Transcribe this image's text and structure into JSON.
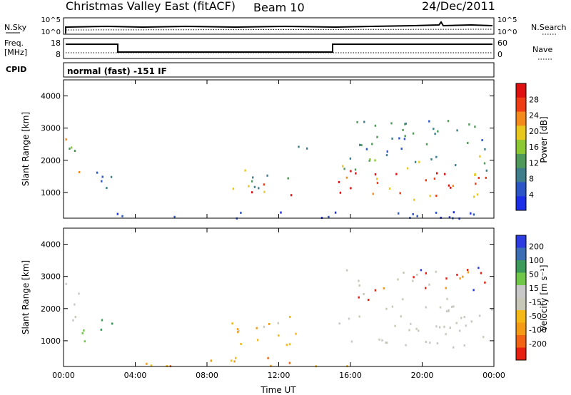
{
  "header": {
    "title": "Christmas Valley East (fitACF)",
    "beam": "Beam 10",
    "date": "24/Dec/2011"
  },
  "noise_panel": {
    "left_label": "N.Sky",
    "left_ticks": [
      "10^5",
      "10^0"
    ],
    "right_ticks": [
      "10^5",
      "10^0"
    ],
    "right_label": "N.Search"
  },
  "freq_panel": {
    "left_label_1": "Freq.",
    "left_label_2": "[MHz]",
    "left_ticks": [
      "18",
      "8"
    ],
    "right_ticks": [
      "60",
      "0"
    ],
    "right_label": "Nave"
  },
  "cpid": {
    "label": "CPID",
    "text": "normal (fast) -151 IF"
  },
  "colors": {
    "power_scale": [
      "#1c2ee8",
      "#2c55c8",
      "#3f7f8c",
      "#4f9a5a",
      "#8cc832",
      "#e8c81c",
      "#f58a1c",
      "#f03c14",
      "#e01010"
    ],
    "velocity_scale": [
      "#e82010",
      "#f26414",
      "#f59a14",
      "#f5b814",
      "#c8c8b8",
      "#c8c8c8",
      "#70c848",
      "#3c9a5a",
      "#3c6eb4",
      "#2c3ce0"
    ]
  },
  "chart_data": [
    {
      "type": "heatmap",
      "name": "power",
      "title": "",
      "xlabel": "",
      "ylabel": "Slant Range [km]",
      "yticks": [
        "1000",
        "2000",
        "3000",
        "4000"
      ],
      "ylim": [
        200,
        4500
      ],
      "xlim_hours": [
        0,
        24
      ],
      "colorbar": {
        "label": "Power [dB]",
        "ticks": [
          "4",
          "8",
          "12",
          "16",
          "20",
          "24",
          "28"
        ],
        "range": [
          0,
          32
        ]
      }
    },
    {
      "type": "heatmap",
      "name": "velocity",
      "title": "",
      "xlabel": "Time UT",
      "ylabel": "Slant Range [km]",
      "yticks": [
        "1000",
        "2000",
        "3000",
        "4000"
      ],
      "ylim": [
        200,
        4500
      ],
      "xticks": [
        "00:00",
        "04:00",
        "08:00",
        "12:00",
        "16:00",
        "20:00",
        "00:00"
      ],
      "colorbar": {
        "label": "Velocity [m s⁻¹]",
        "ticks": [
          "200",
          "100",
          "50",
          "15",
          "-15",
          "-50",
          "-100",
          "-200"
        ]
      }
    }
  ]
}
